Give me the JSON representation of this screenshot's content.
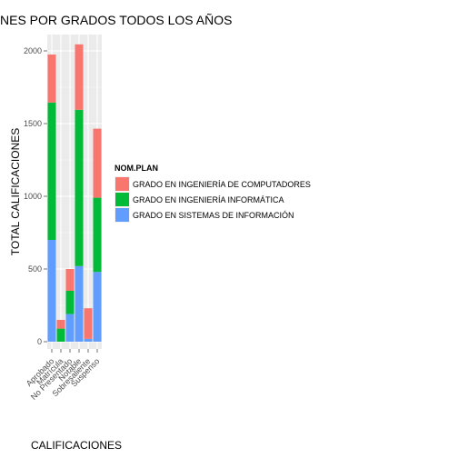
{
  "chart_data": {
    "type": "bar",
    "stacked": true,
    "title": "NES POR GRADOS TODOS LOS AÑOS",
    "xlabel": "CALIFICACIONES",
    "ylabel": "TOTAL CALIFICACIONES",
    "ylim": [
      0,
      2150
    ],
    "yticks": [
      0,
      500,
      1000,
      1500,
      2000
    ],
    "grid": true,
    "legend_position": "right",
    "categories": [
      "Aprobado",
      "Matrícula",
      "No Presentado",
      "Notable",
      "Sobresaliente",
      "Suspenso"
    ],
    "legend": {
      "title": "NOM.PLAN",
      "entries": [
        "GRADO EN INGENIERÍA DE COMPUTADORES",
        "GRADO EN INGENIERÍA INFORMÁTICA",
        "GRADO EN SISTEMAS DE INFORMACIÓN"
      ]
    },
    "series": [
      {
        "name": "GRADO EN INGENIERÍA DE COMPUTADORES",
        "color": "#F8766D",
        "values": [
          330,
          60,
          150,
          450,
          210,
          475
        ]
      },
      {
        "name": "GRADO EN INGENIERÍA INFORMÁTICA",
        "color": "#00BA38",
        "values": [
          945,
          90,
          160,
          1075,
          0,
          510
        ]
      },
      {
        "name": "GRADO EN SISTEMAS DE INFORMACIÓN",
        "color": "#619CFF",
        "values": [
          700,
          0,
          190,
          520,
          20,
          480
        ]
      }
    ]
  }
}
